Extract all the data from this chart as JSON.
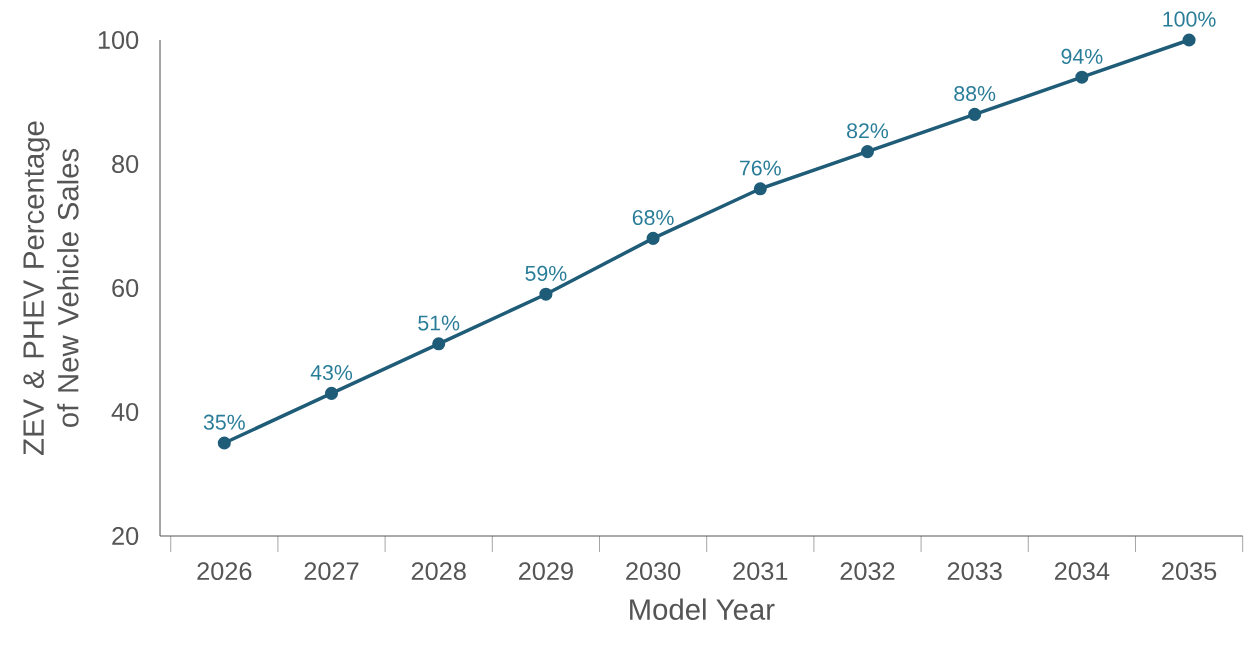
{
  "chart_data": {
    "type": "line",
    "xlabel": "Model Year",
    "ylabel": "ZEV & PHEV Percentage of New Vehicle Sales",
    "categories": [
      "2026",
      "2027",
      "2028",
      "2029",
      "2030",
      "2031",
      "2032",
      "2033",
      "2034",
      "2035"
    ],
    "values": [
      35,
      43,
      51,
      59,
      68,
      76,
      82,
      88,
      94,
      100
    ],
    "value_labels": [
      "35%",
      "43%",
      "51%",
      "59%",
      "68%",
      "76%",
      "82%",
      "88%",
      "94%",
      "100%"
    ],
    "color": "#1f5c78",
    "marker": "circle",
    "line_style": "solid",
    "ylim": [
      20,
      100
    ],
    "yticks": [
      20,
      40,
      60,
      80,
      100
    ],
    "grid": false
  }
}
